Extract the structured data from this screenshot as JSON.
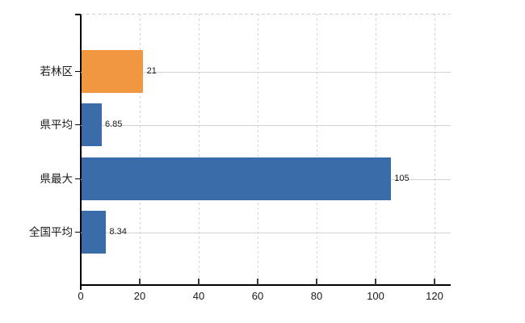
{
  "chart_data": {
    "type": "bar",
    "orientation": "horizontal",
    "title": "",
    "categories": [
      "若林区",
      "県平均",
      "県最大",
      "全国平均"
    ],
    "values": [
      21,
      6.85,
      105,
      8.34
    ],
    "value_labels": [
      "21",
      "6.85",
      "105",
      "8.34"
    ],
    "bar_colors": [
      "#f0973f",
      "#3b6caa",
      "#3b6caa",
      "#3b6caa"
    ],
    "highlight_color": "#f0973f",
    "default_color": "#3b6caa",
    "xlim": [
      0,
      125.5
    ],
    "xticks": [
      0,
      20,
      40,
      60,
      80,
      100,
      120
    ],
    "xtick_labels": [
      "0",
      "20",
      "40",
      "60",
      "80",
      "100",
      "120"
    ],
    "grid": {
      "vertical_style": "dashed",
      "horizontal_style": "solid",
      "top_border_style": "dashed"
    },
    "colors": {
      "axis": "#000000",
      "text": "#1a1a1a",
      "vertical_gridline": "#d7d3db",
      "horizontal_gridline": "#d3d3d3",
      "top_border": "#d3cfd3"
    },
    "legend": null
  }
}
